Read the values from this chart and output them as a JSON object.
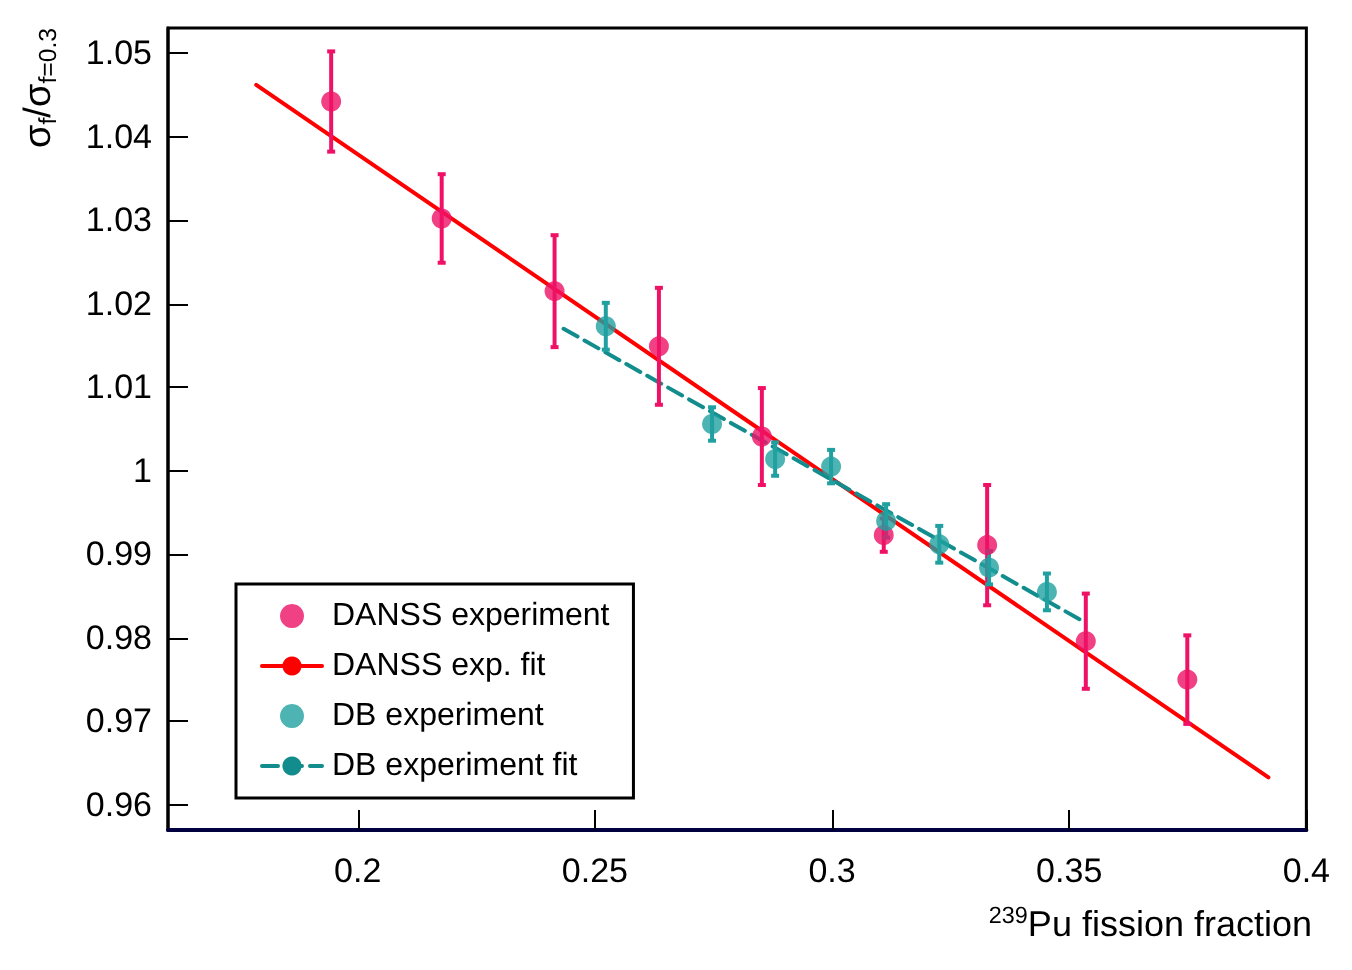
{
  "chart_data": {
    "type": "scatter",
    "xlabel": "$^{239}$Pu fission fraction",
    "ylabel": "σ$_{f}$/σ$_{f=0.3}$",
    "xlim": [
      0.16,
      0.4
    ],
    "xticks": [
      0.2,
      0.25,
      0.3,
      0.35,
      0.4
    ],
    "ylim": [
      0.957,
      1.053
    ],
    "yticks": [
      0.96,
      0.97,
      0.98,
      0.99,
      1,
      1.01,
      1.02,
      1.03,
      1.04,
      1.05
    ],
    "grid": false,
    "legend": "bottom left",
    "series": [
      {
        "name": "DANSS experiment",
        "marker": "circle",
        "color": "#ee1166",
        "x": [
          0.1944,
          0.2177,
          0.2415,
          0.2635,
          0.2852,
          0.3109,
          0.3327,
          0.3535,
          0.3749
        ],
        "values": [
          1.0442,
          1.0302,
          1.0215,
          1.0149,
          1.0041,
          0.9923,
          0.9911,
          0.9796,
          0.975
        ],
        "errors": [
          0.006,
          0.0053,
          0.0067,
          0.007,
          0.0058,
          0.002,
          0.0072,
          0.0057,
          0.0053
        ]
      },
      {
        "name": "DANSS exp. fit",
        "type": "line",
        "marker": "none",
        "line_style": "solid",
        "color": "#ff0000",
        "x": [
          0.1786,
          0.392
        ],
        "values": [
          1.0462,
          0.9633
        ]
      },
      {
        "name": "DB experiment",
        "marker": "circle",
        "color": "#20a0a0",
        "x": [
          0.2523,
          0.2747,
          0.288,
          0.2998,
          0.3114,
          0.3226,
          0.3331,
          0.3453
        ],
        "values": [
          1.0173,
          1.0056,
          1.0014,
          1.0005,
          0.994,
          0.9912,
          0.9884,
          0.9855
        ],
        "errors": [
          0.0028,
          0.002,
          0.002,
          0.002,
          0.002,
          0.0022,
          0.002,
          0.0022
        ]
      },
      {
        "name": "DB experiment fit",
        "type": "line",
        "marker": "none",
        "line_style": "dashed",
        "color": "#128c8c",
        "x": [
          0.2434,
          0.3535
        ],
        "values": [
          1.017,
          0.9818
        ]
      }
    ]
  }
}
